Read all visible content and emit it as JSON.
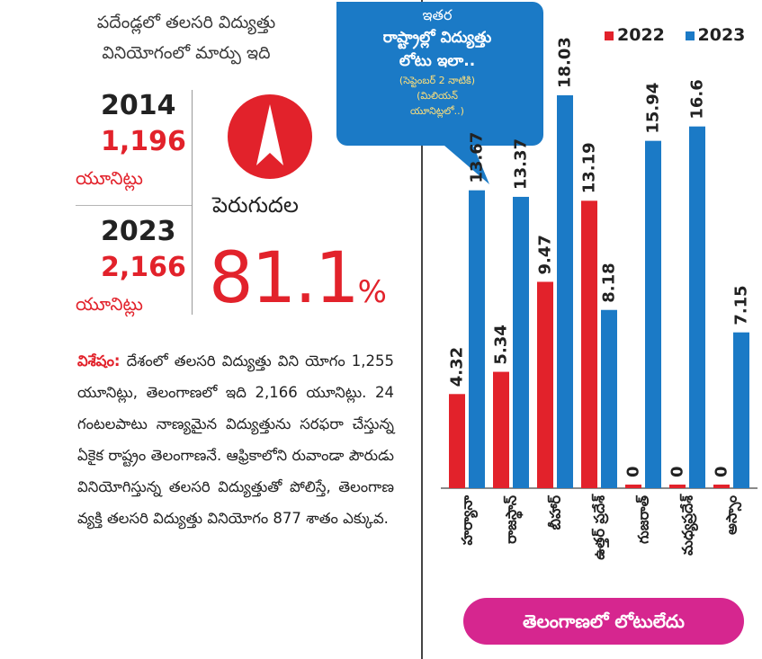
{
  "header": {
    "title_line1": "పదేండ్లలో తలసరి విద్యుత్తు",
    "title_line2": "వినియోగంలో మార్పు ఇది"
  },
  "stats": {
    "year1": "2014",
    "units1": "1,196",
    "unit_label1": "యూనిట్లు",
    "year2": "2023",
    "units2": "2,166",
    "unit_label2": "యూనిట్లు",
    "growth_label": "పెరుగుదల",
    "growth_value": "81.1",
    "growth_suffix": "%"
  },
  "body": {
    "keyword": "విశేషం:",
    "text": " దేశంలో తలసరి విద్యుత్తు విని యోగం 1,255 యూనిట్లు, తెలంగాణలో ఇది 2,166 యూనిట్లు. 24 గంటలపాటు నాణ్యమైన విద్యుత్తును సరఫరా చేస్తున్న ఏకైక రాష్ట్రం తెలంగాణనే. ఆఫ్రికాలోని రువాండా పౌరుడు వినియోగిస్తున్న తలసరి విద్యుత్తుతో పోలిస్తే, తెలంగాణ వ్యక్తి తలసరి విద్యుత్తు వినియోగం 877 శాతం ఎక్కువ."
  },
  "bubble": {
    "line1": "ఇతర",
    "line2": "రాష్ట్రాల్లో విద్యుత్తు",
    "line3": "లోటు ఇలా..",
    "note1": "(సెప్టెంబర్ 2 నాటికి)",
    "note2": "(మిలియన్",
    "note3": "యూనిట్లలో..)"
  },
  "pill_text": "తెలంగాణలో లోటులేదు",
  "colors": {
    "red": "#e2222b",
    "blue": "#1b7ac6",
    "bubble": "#1b7ac6",
    "pill": "#d6268f"
  },
  "chart_data": {
    "type": "bar",
    "categories": [
      "హర్యానా",
      "రాజస్థాన్",
      "బీహార్",
      "ఉత్తర్ ప్రదేశ్",
      "గుజరాత్",
      "మధ్యప్రదేశ్",
      "అస్సాం"
    ],
    "series": [
      {
        "name": "2022",
        "values": [
          4.32,
          5.34,
          9.47,
          13.19,
          0,
          0,
          0
        ]
      },
      {
        "name": "2023",
        "values": [
          13.67,
          13.37,
          18.03,
          8.18,
          15.94,
          16.6,
          7.15
        ]
      }
    ],
    "value_labels": {
      "2022": [
        "4.32",
        "5.34",
        "9.47",
        "13.19",
        "0",
        "0",
        "0"
      ],
      "2023": [
        "13.67",
        "13.37",
        "18.03",
        "8.18",
        "15.94",
        "16.6",
        "7.15"
      ]
    },
    "title": "",
    "xlabel": "",
    "ylabel": "",
    "ylim": [
      0,
      18.03
    ],
    "grid": false,
    "legend": "top-right",
    "legend_labels": [
      "2022",
      "2023"
    ]
  }
}
